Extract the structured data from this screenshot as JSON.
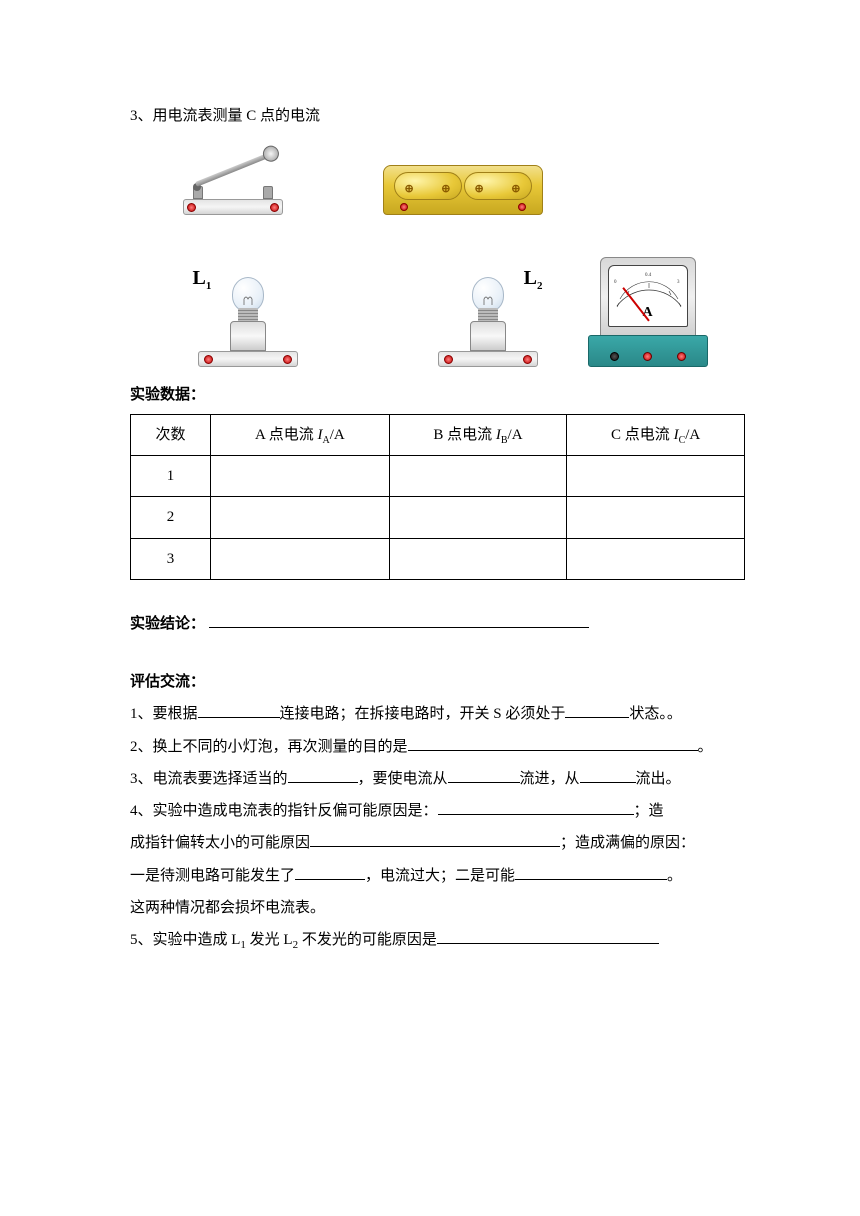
{
  "q3": {
    "text": "3、用电流表测量 C 点的电流"
  },
  "labels": {
    "L1": "L",
    "L1sub": "1",
    "L2": "L",
    "L2sub": "2",
    "A": "A"
  },
  "data_header": "实验数据：",
  "table": {
    "cols": {
      "n": "次数",
      "a_pre": "A 点电流 ",
      "a_it": "I",
      "a_sub": "A",
      "a_post": "/A",
      "b_pre": "B 点电流 ",
      "b_it": "I",
      "b_sub": "B",
      "b_post": "/A",
      "c_pre": "C 点电流 ",
      "c_it": "I",
      "c_sub": "C",
      "c_post": "/A"
    },
    "rows": [
      "1",
      "2",
      "3"
    ]
  },
  "conclusion_label": "实验结论：",
  "evaluate_label": "评估交流：",
  "q": {
    "q1a": "1、要根据",
    "q1b": "连接电路；在拆接电路时，开关 S 必须处于",
    "q1c": "状态。。",
    "q2a": "2、换上不同的小灯泡，再次测量的目的是",
    "q2b": "。",
    "q3a": "3、电流表要选择适当的",
    "q3b": "，要使电流从",
    "q3c": "流进，从",
    "q3d": "流出。",
    "q4a": "4、实验中造成电流表的指针反偏可能原因是：",
    "q4b": "；造",
    "q4c": "成指针偏转太小的可能原因",
    "q4d": "；造成满偏的原因：",
    "q4e": "一是待测电路可能发生了",
    "q4f": "，电流过大；二是可能",
    "q4g": "。",
    "q4h": "这两种情况都会损坏电流表。",
    "q5a": "5、实验中造成 L",
    "q5a_s1": "1",
    "q5b": " 发光 L",
    "q5b_s2": "2",
    "q5c": " 不发光的可能原因是"
  },
  "blank_widths": {
    "w1": "82px",
    "w2": "64px",
    "w3": "290px",
    "w4": "70px",
    "w5": "72px",
    "w6": "56px",
    "w7": "196px",
    "w8": "250px",
    "w9": "70px",
    "w10": "152px",
    "w11": "222px"
  }
}
